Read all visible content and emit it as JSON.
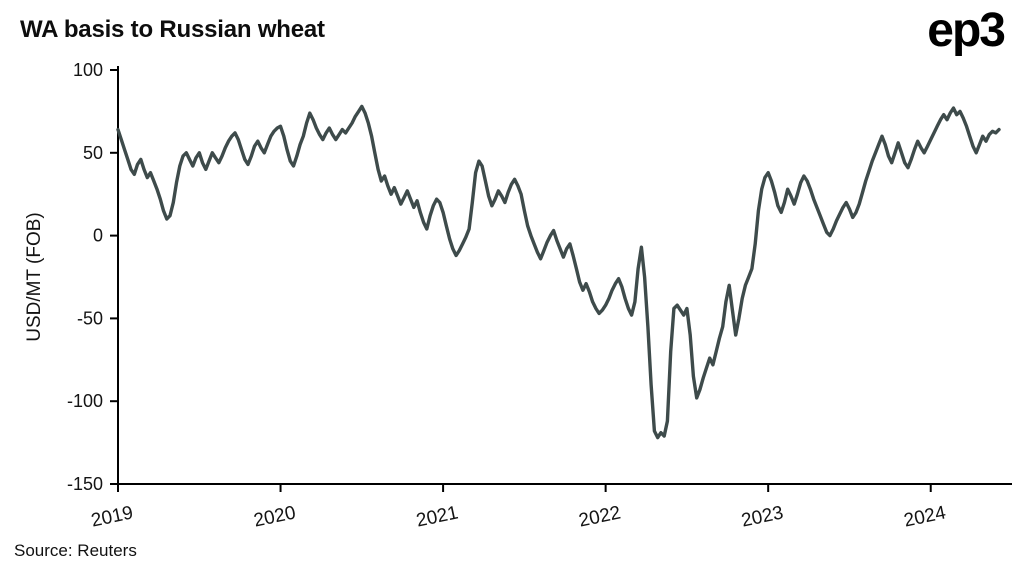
{
  "header": {
    "title": "WA basis to Russian wheat",
    "logo": "ep3"
  },
  "footer": {
    "source": "Source: Reuters"
  },
  "chart_data": {
    "type": "line",
    "title": "WA basis to Russian wheat",
    "xlabel": "",
    "ylabel": "USD/MT (FOB)",
    "x_ticks": [
      2019,
      2020,
      2021,
      2022,
      2023,
      2024
    ],
    "y_ticks": [
      100,
      50,
      0,
      -50,
      -100,
      -150
    ],
    "xlim": [
      2019,
      2024.5
    ],
    "ylim": [
      -150,
      100
    ],
    "grid": false,
    "legend": false,
    "line_color": "#3e4b4b",
    "axis_color": "#000000",
    "x_start": 2019.0,
    "x_step": 0.02,
    "series": [
      {
        "name": "WA basis to Russian wheat",
        "values": [
          64,
          58,
          52,
          46,
          40,
          37,
          43,
          46,
          40,
          35,
          38,
          33,
          28,
          22,
          15,
          10,
          12,
          20,
          32,
          42,
          48,
          50,
          46,
          42,
          47,
          50,
          44,
          40,
          45,
          50,
          47,
          44,
          48,
          53,
          57,
          60,
          62,
          58,
          52,
          46,
          43,
          48,
          54,
          57,
          53,
          50,
          55,
          60,
          63,
          65,
          66,
          60,
          52,
          45,
          42,
          48,
          55,
          60,
          68,
          74,
          70,
          65,
          61,
          58,
          62,
          65,
          61,
          58,
          61,
          64,
          62,
          65,
          68,
          72,
          75,
          78,
          74,
          68,
          60,
          50,
          40,
          33,
          36,
          30,
          25,
          29,
          24,
          19,
          23,
          27,
          22,
          17,
          21,
          14,
          8,
          4,
          12,
          18,
          22,
          20,
          14,
          6,
          -2,
          -8,
          -12,
          -9,
          -5,
          -1,
          4,
          20,
          38,
          45,
          42,
          33,
          24,
          18,
          22,
          27,
          24,
          20,
          26,
          31,
          34,
          30,
          25,
          15,
          6,
          0,
          -5,
          -10,
          -14,
          -9,
          -4,
          0,
          3,
          -3,
          -8,
          -13,
          -8,
          -5,
          -12,
          -20,
          -28,
          -33,
          -29,
          -34,
          -40,
          -44,
          -47,
          -45,
          -42,
          -38,
          -33,
          -29,
          -26,
          -31,
          -38,
          -44,
          -48,
          -40,
          -20,
          -7,
          -25,
          -55,
          -90,
          -118,
          -122,
          -119,
          -121,
          -112,
          -70,
          -44,
          -42,
          -45,
          -48,
          -44,
          -60,
          -85,
          -98,
          -93,
          -86,
          -80,
          -74,
          -78,
          -70,
          -62,
          -55,
          -40,
          -30,
          -45,
          -60,
          -50,
          -38,
          -30,
          -25,
          -20,
          -5,
          15,
          28,
          35,
          38,
          33,
          26,
          18,
          14,
          20,
          28,
          24,
          19,
          25,
          32,
          36,
          33,
          28,
          22,
          17,
          12,
          7,
          2,
          0,
          4,
          9,
          13,
          17,
          20,
          16,
          11,
          14,
          19,
          26,
          33,
          39,
          45,
          50,
          55,
          60,
          55,
          48,
          44,
          50,
          56,
          50,
          44,
          41,
          46,
          52,
          57,
          53,
          50,
          54,
          58,
          62,
          66,
          70,
          73,
          70,
          74,
          77,
          73,
          75,
          71,
          66,
          60,
          54,
          50,
          55,
          60,
          57,
          61,
          63,
          62,
          64
        ]
      }
    ]
  }
}
